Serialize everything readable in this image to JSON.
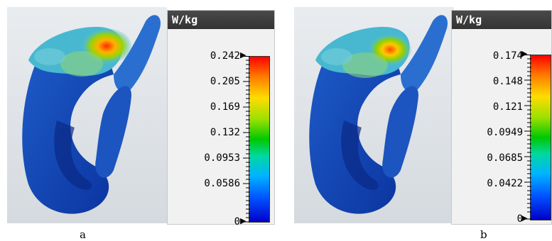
{
  "figure": {
    "panels": [
      {
        "caption": "a",
        "legend": {
          "unit": "W/kg",
          "ticks": [
            "0.242",
            "0.205",
            "0.169",
            "0.132",
            "0.0953",
            "0.0586",
            "0"
          ]
        }
      },
      {
        "caption": "b",
        "legend": {
          "unit": "W/kg",
          "ticks": [
            "0.174",
            "0.148",
            "0.121",
            "0.0949",
            "0.0685",
            "0.0422",
            "0"
          ]
        }
      }
    ]
  }
}
